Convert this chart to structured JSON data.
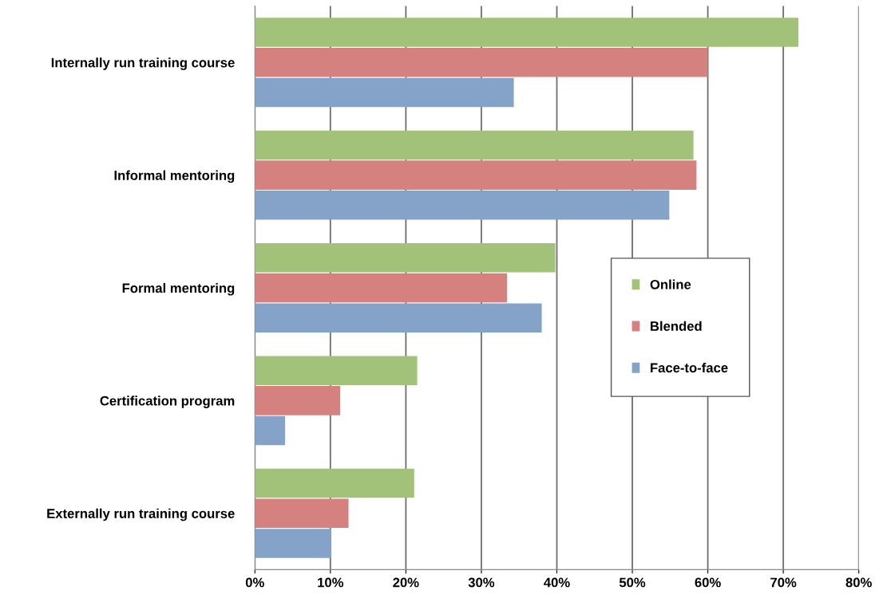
{
  "chart_data": {
    "type": "bar",
    "orientation": "horizontal",
    "categories": [
      "Internally run training course",
      "Informal mentoring",
      "Formal mentoring",
      "Certification program",
      "Externally run training course"
    ],
    "series": [
      {
        "name": "Online",
        "color": "#a3c279",
        "values": [
          72,
          58.1,
          39.8,
          21.5,
          21.1
        ]
      },
      {
        "name": "Blended",
        "color": "#d4817f",
        "values": [
          60,
          58.5,
          33.4,
          11.3,
          12.4
        ]
      },
      {
        "name": "Face-to-face",
        "color": "#85a2c8",
        "values": [
          34.3,
          54.9,
          38,
          4,
          10.1
        ]
      }
    ],
    "xlim": [
      0,
      80
    ],
    "xticks": [
      {
        "value": 0,
        "label": "0%"
      },
      {
        "value": 10,
        "label": "10%"
      },
      {
        "value": 20,
        "label": "20%"
      },
      {
        "value": 30,
        "label": "30%"
      },
      {
        "value": 40,
        "label": "40%"
      },
      {
        "value": 50,
        "label": "50%"
      },
      {
        "value": 60,
        "label": "60%"
      },
      {
        "value": 70,
        "label": "70%"
      },
      {
        "value": 80,
        "label": "80%"
      }
    ],
    "grid": "x",
    "legend": "right"
  }
}
